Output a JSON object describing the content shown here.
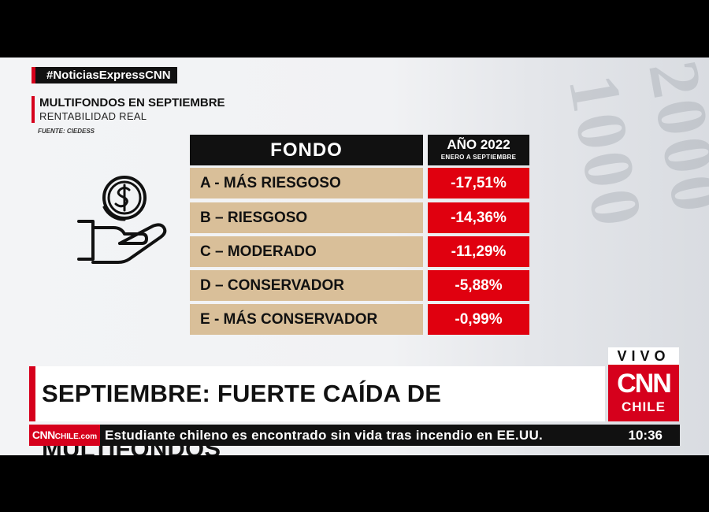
{
  "hashtag": "#NoticiasExpressCNN",
  "graphic": {
    "title": "MULTIFONDOS EN SEPTIEMBRE",
    "subtitle": "RENTABILIDAD REAL",
    "source": "FUENTE: CIEDESS"
  },
  "table": {
    "header_fondo": "FONDO",
    "header_year": "AÑO 2022",
    "header_period": "ENERO A SEPTIEMBRE",
    "rows": [
      {
        "name": "A - MÁS RIESGOSO",
        "value": "-17,51%"
      },
      {
        "name": "B – RIESGOSO",
        "value": "-14,36%"
      },
      {
        "name": "C – MODERADO",
        "value": "-11,29%"
      },
      {
        "name": "D – CONSERVADOR",
        "value": "-5,88%"
      },
      {
        "name": "E - MÁS CONSERVADOR",
        "value": "-0,99%"
      }
    ]
  },
  "live_label": "VIVO",
  "brand": {
    "logo": "CNN",
    "country": "CHILE",
    "accent": "#d6001c"
  },
  "headline": "SEPTIEMBRE: FUERTE CAÍDA DE MULTIFONDOS",
  "ticker": {
    "logo_main": "CNN",
    "logo_sub": "CHILE.com",
    "text": "Estudiante chileno es encontrado sin vida tras incendio en EE.UU.",
    "time": "10:36"
  },
  "icon": "hand-with-dollar-coin-icon"
}
